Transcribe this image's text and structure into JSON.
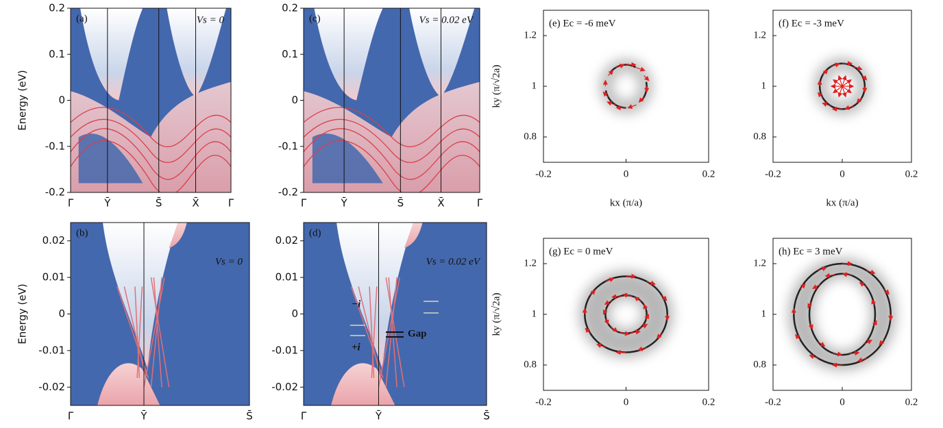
{
  "chart_data": [
    {
      "type": "heatmap",
      "label": "(a)",
      "annotation": "Vs = 0",
      "ylabel": "Energy (eV)",
      "categories": [
        "Γ̄",
        "Ȳ",
        "S̄",
        "X̄",
        "Γ̄"
      ],
      "ylim": [
        -0.2,
        0.2
      ],
      "yticks": [
        -0.2,
        -0.1,
        0,
        0.1,
        0.2
      ]
    },
    {
      "type": "heatmap",
      "label": "(b)",
      "annotation": "Vs = 0",
      "ylabel": "Energy (eV)",
      "categories": [
        "Γ̄",
        "Ȳ",
        "S̄"
      ],
      "ylim": [
        -0.025,
        0.025
      ],
      "yticks": [
        -0.02,
        -0.01,
        0,
        0.01,
        0.02
      ]
    },
    {
      "type": "heatmap",
      "label": "(c)",
      "annotation": "Vs = 0.02 eV",
      "categories": [
        "Γ̄",
        "Ȳ",
        "S̄",
        "X̄",
        "Γ̄"
      ],
      "ylim": [
        -0.2,
        0.2
      ],
      "yticks": [
        -0.2,
        -0.1,
        0,
        0.1,
        0.2
      ]
    },
    {
      "type": "heatmap",
      "label": "(d)",
      "annotation": "Vs = 0.02 eV",
      "categories": [
        "Γ̄",
        "Ȳ",
        "S̄"
      ],
      "ylim": [
        -0.025,
        0.025
      ],
      "yticks": [
        -0.02,
        -0.01,
        0,
        0.01,
        0.02
      ],
      "notes": [
        "−i",
        "+i",
        "Gap"
      ]
    },
    {
      "type": "contour",
      "label": "(e) Ec = -6 meV",
      "ylabel": "ky (π/√2a)",
      "xlabel": "kx (π/a)",
      "xlim": [
        -0.2,
        0.2
      ],
      "xticks": [
        -0.2,
        0,
        0.2
      ],
      "ylim": [
        0.7,
        1.3
      ],
      "yticks": [
        0.8,
        1,
        1.2
      ]
    },
    {
      "type": "contour",
      "label": "(f) Ec = -3 meV",
      "xlabel": "kx (π/a)",
      "xlim": [
        -0.2,
        0.2
      ],
      "xticks": [
        -0.2,
        0,
        0.2
      ],
      "ylim": [
        0.7,
        1.3
      ],
      "yticks": [
        0.8,
        1,
        1.2
      ]
    },
    {
      "type": "contour",
      "label": "(g) Ec = 0 meV",
      "ylabel": "ky (π/√2a)",
      "xlim": [
        -0.2,
        0.2
      ],
      "xticks": [
        -0.2,
        0,
        0.2
      ],
      "ylim": [
        0.7,
        1.3
      ],
      "yticks": [
        0.8,
        1,
        1.2
      ]
    },
    {
      "type": "contour",
      "label": "(h) Ec = 3 meV",
      "xlim": [
        -0.2,
        0.2
      ],
      "xticks": [
        -0.2,
        0,
        0.2
      ],
      "ylim": [
        0.7,
        1.3
      ],
      "yticks": [
        0.8,
        1,
        1.2
      ]
    }
  ]
}
